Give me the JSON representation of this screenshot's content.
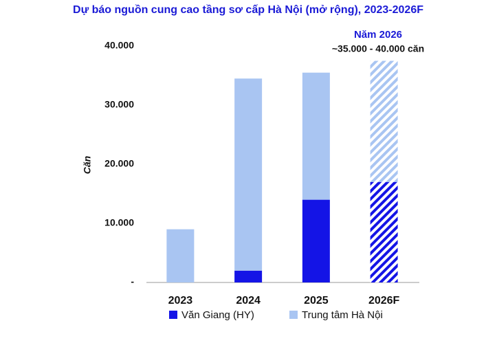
{
  "chart_data": {
    "type": "stacked_bar",
    "title": "Dự báo nguồn cung cao tầng sơ cấp Hà Nội (mở rộng), 2023-2026F",
    "y_label": "Căn",
    "categories": [
      "2023",
      "2024",
      "2025",
      "2026F"
    ],
    "series": [
      {
        "name": "Văn Giang (HY)",
        "color": "#1414e6",
        "values": [
          0,
          2000,
          14000,
          17000
        ]
      },
      {
        "name": "Trung tâm Hà Nội",
        "color": "#a9c5f2",
        "values": [
          9000,
          32500,
          21500,
          20500
        ]
      }
    ],
    "hatched": [
      false,
      false,
      false,
      true
    ],
    "annotations": [
      "Năm 2026",
      "~35.000 - 40.000 căn"
    ],
    "ylim": [
      0,
      40000
    ],
    "yticks": [
      {
        "value": 0,
        "label": "-"
      },
      {
        "value": 10000,
        "label": "10.000"
      },
      {
        "value": 20000,
        "label": "20.000"
      },
      {
        "value": 30000,
        "label": "30.000"
      },
      {
        "value": 40000,
        "label": "40.000"
      }
    ],
    "grid": false
  }
}
